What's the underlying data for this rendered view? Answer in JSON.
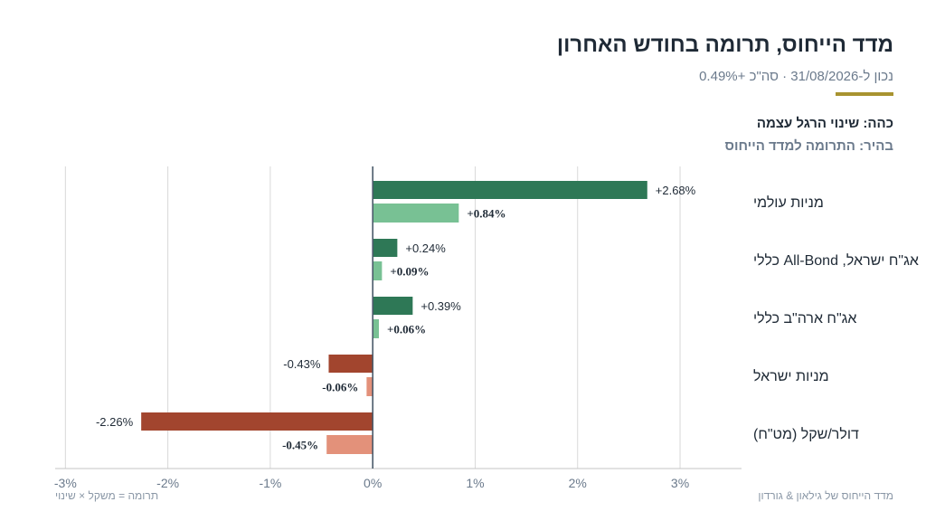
{
  "header": {
    "title": "מדד הייחוס, תרומה בחודש האחרון",
    "subtitle": "נכון ל-31/08/2026 · סה\"כ +0.49%"
  },
  "legend": {
    "dark": "כהה: שינוי הרגל עצמה",
    "light": "בהיר: התרומה למדד הייחוס"
  },
  "footer": {
    "source": "מדד הייחוס של גילאון & גורדון",
    "formula": "תרומה = משקל × שינוי"
  },
  "colors": {
    "accent": "#a89330",
    "pos_dark": "#2e7856",
    "pos_light": "#78c194",
    "neg_dark": "#a2452e",
    "neg_light": "#e3917a",
    "axis": "#4a5a6a",
    "grid": "#d8d8d8",
    "tick_text": "#6b7a8c"
  },
  "chart_data": {
    "type": "bar",
    "orientation": "horizontal",
    "categories": [
      "מניות עולמי",
      "אג\"ח ישראל, All-Bond כללי",
      "אג\"ח ארה\"ב כללי",
      "מניות ישראל",
      "דולר/שקל (מט\"ח)"
    ],
    "series": [
      {
        "values": [
          2.68,
          0.24,
          0.39,
          -0.43,
          -2.26
        ],
        "labels": [
          "+2.68%",
          "+0.24%",
          "+0.39%",
          "-0.43%",
          "-2.26%"
        ]
      },
      {
        "values": [
          0.84,
          0.09,
          0.06,
          -0.06,
          -0.45
        ],
        "labels": [
          "+0.84%",
          "+0.09%",
          "+0.06%",
          "-0.06%",
          "-0.45%"
        ]
      }
    ],
    "xlim": [
      -3.1,
      3.6
    ],
    "xticks": [
      -3,
      -2,
      -1,
      0,
      1,
      2,
      3
    ],
    "xtick_labels": [
      "-3%",
      "-2%",
      "-1%",
      "0%",
      "1%",
      "2%",
      "3%"
    ],
    "grid": true
  }
}
